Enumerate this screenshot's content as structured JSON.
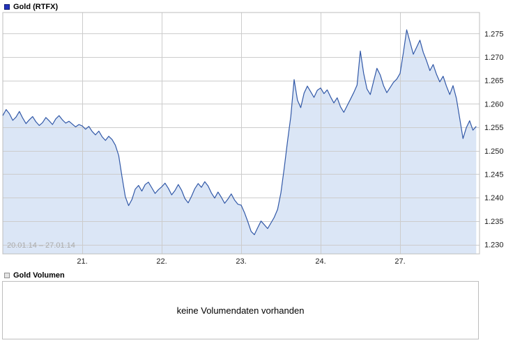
{
  "colors": {
    "line": "#3158a7",
    "fill": "#dbe6f6",
    "grid": "#cccccc",
    "border": "#bdbdbd",
    "axis-text": "#1a1a1a",
    "muted-text": "#aaaaaa",
    "price-swatch": "#2233bb",
    "volume-swatch-fill": "#e4e4e4",
    "volume-swatch-border": "#909090"
  },
  "price_chart": {
    "legend": "Gold (RTFX)",
    "date_range": "20.01.14 – 27.01.14"
  },
  "volume_chart": {
    "legend": "Gold Volumen",
    "message": "keine Volumendaten vorhanden"
  },
  "chart_data": {
    "type": "area",
    "title": "Gold (RTFX)",
    "x_unit": "trading days starting 20.01.14 (days shown: 20., 21., 22., 23., 24., 27.)",
    "dx_days": 0.0416667,
    "xlim": [
      0,
      6
    ],
    "ylim": [
      1228,
      1279.5
    ],
    "grid": true,
    "legend_position": "top-left",
    "y_ticks": [
      {
        "value": 1275,
        "label": "1.275"
      },
      {
        "value": 1270,
        "label": "1.270"
      },
      {
        "value": 1265,
        "label": "1.265"
      },
      {
        "value": 1260,
        "label": "1.260"
      },
      {
        "value": 1255,
        "label": "1.255"
      },
      {
        "value": 1250,
        "label": "1.250"
      },
      {
        "value": 1245,
        "label": "1.245"
      },
      {
        "value": 1240,
        "label": "1.240"
      },
      {
        "value": 1235,
        "label": "1.235"
      },
      {
        "value": 1230,
        "label": "1.230"
      }
    ],
    "x_ticks": [
      {
        "value": 1,
        "label": "21."
      },
      {
        "value": 2,
        "label": "22."
      },
      {
        "value": 3,
        "label": "23."
      },
      {
        "value": 4,
        "label": "24."
      },
      {
        "value": 5,
        "label": "27."
      }
    ],
    "series": [
      {
        "name": "Gold (RTFX)",
        "values": [
          1257.5,
          1258.8,
          1257.9,
          1256.5,
          1257.2,
          1258.4,
          1257.0,
          1255.8,
          1256.6,
          1257.3,
          1256.2,
          1255.4,
          1256.0,
          1257.1,
          1256.4,
          1255.6,
          1256.8,
          1257.5,
          1256.6,
          1255.9,
          1256.3,
          1255.7,
          1255.1,
          1255.6,
          1255.3,
          1254.6,
          1255.2,
          1254.1,
          1253.4,
          1254.2,
          1253.0,
          1252.2,
          1253.1,
          1252.4,
          1251.2,
          1249.0,
          1244.5,
          1240.2,
          1238.3,
          1239.6,
          1241.8,
          1242.6,
          1241.4,
          1242.8,
          1243.3,
          1242.1,
          1240.9,
          1241.7,
          1242.3,
          1243.1,
          1242.0,
          1240.6,
          1241.5,
          1242.8,
          1241.6,
          1239.8,
          1238.9,
          1240.3,
          1241.9,
          1243.0,
          1242.2,
          1243.4,
          1242.5,
          1241.0,
          1239.9,
          1241.2,
          1240.1,
          1238.8,
          1239.7,
          1240.8,
          1239.5,
          1238.6,
          1238.4,
          1236.8,
          1234.9,
          1232.8,
          1232.1,
          1233.6,
          1235.0,
          1234.2,
          1233.4,
          1234.6,
          1235.8,
          1237.5,
          1241.0,
          1246.3,
          1252.0,
          1257.4,
          1265.2,
          1260.8,
          1259.2,
          1262.3,
          1263.8,
          1262.6,
          1261.4,
          1262.9,
          1263.4,
          1262.2,
          1263.0,
          1261.5,
          1260.2,
          1261.3,
          1259.4,
          1258.2,
          1259.6,
          1261.0,
          1262.4,
          1264.0,
          1271.3,
          1266.5,
          1263.2,
          1262.0,
          1264.8,
          1267.6,
          1266.2,
          1263.9,
          1262.4,
          1263.5,
          1264.6,
          1265.3,
          1266.5,
          1271.0,
          1275.8,
          1273.2,
          1270.6,
          1272.1,
          1273.6,
          1271.0,
          1269.2,
          1267.1,
          1268.4,
          1266.3,
          1264.7,
          1265.9,
          1263.8,
          1262.0,
          1263.9,
          1261.2,
          1257.0,
          1252.6,
          1254.9,
          1256.4,
          1254.4,
          1255.2
        ]
      }
    ]
  }
}
